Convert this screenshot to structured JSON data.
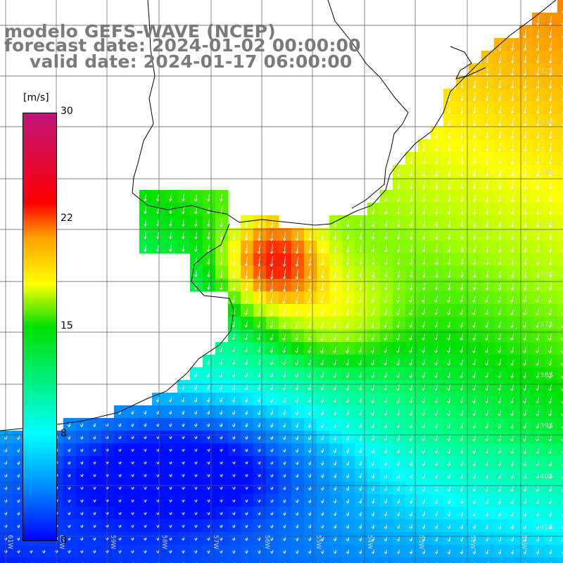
{
  "title": {
    "model": "modelo GEFS-WAVE (NCEP)",
    "forecast": "forecast date: 2024-01-02 00:00:00",
    "valid": "valid date: 2024-01-17 06:00:00"
  },
  "colorbar": {
    "unit": "[m/s]",
    "ticks": [
      "30",
      "22",
      "15",
      "8",
      "0"
    ],
    "tick_values": [
      30,
      22,
      15,
      8,
      0
    ],
    "colors": [
      "#c0147a",
      "#ff0000",
      "#ffa000",
      "#ffff00",
      "#00e000",
      "#00ffff",
      "#0090ff",
      "#0000ff"
    ]
  },
  "lat_labels": [
    "32S",
    "33S",
    "34S",
    "35S",
    "36S",
    "37S",
    "38S",
    "39S",
    "40S",
    "41S"
  ],
  "lon_labels": [
    "61W",
    "60W",
    "59W",
    "58W",
    "57W",
    "56W",
    "55W",
    "54W",
    "53W",
    "52W",
    "51W"
  ],
  "colors": {
    "land": "#ffffff",
    "grid": "#555555",
    "coast": "#000000",
    "arrow": "#ffffff"
  }
}
